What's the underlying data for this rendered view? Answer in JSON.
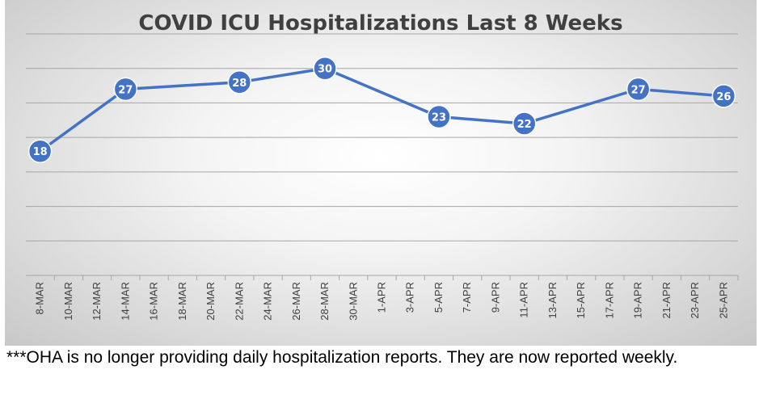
{
  "chart_data": {
    "type": "line",
    "title": "COVID ICU Hospitalizations Last 8 Weeks",
    "categories": [
      "8-MAR",
      "10-MAR",
      "12-MAR",
      "14-MAR",
      "16-MAR",
      "18-MAR",
      "20-MAR",
      "22-MAR",
      "24-MAR",
      "26-MAR",
      "28-MAR",
      "30-MAR",
      "1-APR",
      "3-APR",
      "5-APR",
      "7-APR",
      "9-APR",
      "11-APR",
      "13-APR",
      "15-APR",
      "17-APR",
      "19-APR",
      "21-APR",
      "23-APR",
      "25-APR"
    ],
    "points": [
      {
        "x": "8-MAR",
        "y": 18
      },
      {
        "x": "14-MAR",
        "y": 27
      },
      {
        "x": "22-MAR",
        "y": 28
      },
      {
        "x": "28-MAR",
        "y": 30
      },
      {
        "x": "5-APR",
        "y": 23
      },
      {
        "x": "11-APR",
        "y": 22
      },
      {
        "x": "19-APR",
        "y": 27
      },
      {
        "x": "25-APR",
        "y": 26
      }
    ],
    "ylim": [
      0,
      35
    ],
    "y_gridlines": [
      5,
      10,
      15,
      20,
      25,
      30,
      35
    ],
    "y_tick_labels_shown": false,
    "xlabel": "",
    "ylabel": "",
    "grid": true,
    "legend": "none",
    "data_labels": true,
    "colors": {
      "line": "#4472C4",
      "marker": "#4472C4",
      "marker_border": "#ffffff",
      "gridline": "#a6a6a6"
    }
  },
  "footnote": "***OHA is no longer providing daily hospitalization reports.  They are now reported weekly."
}
